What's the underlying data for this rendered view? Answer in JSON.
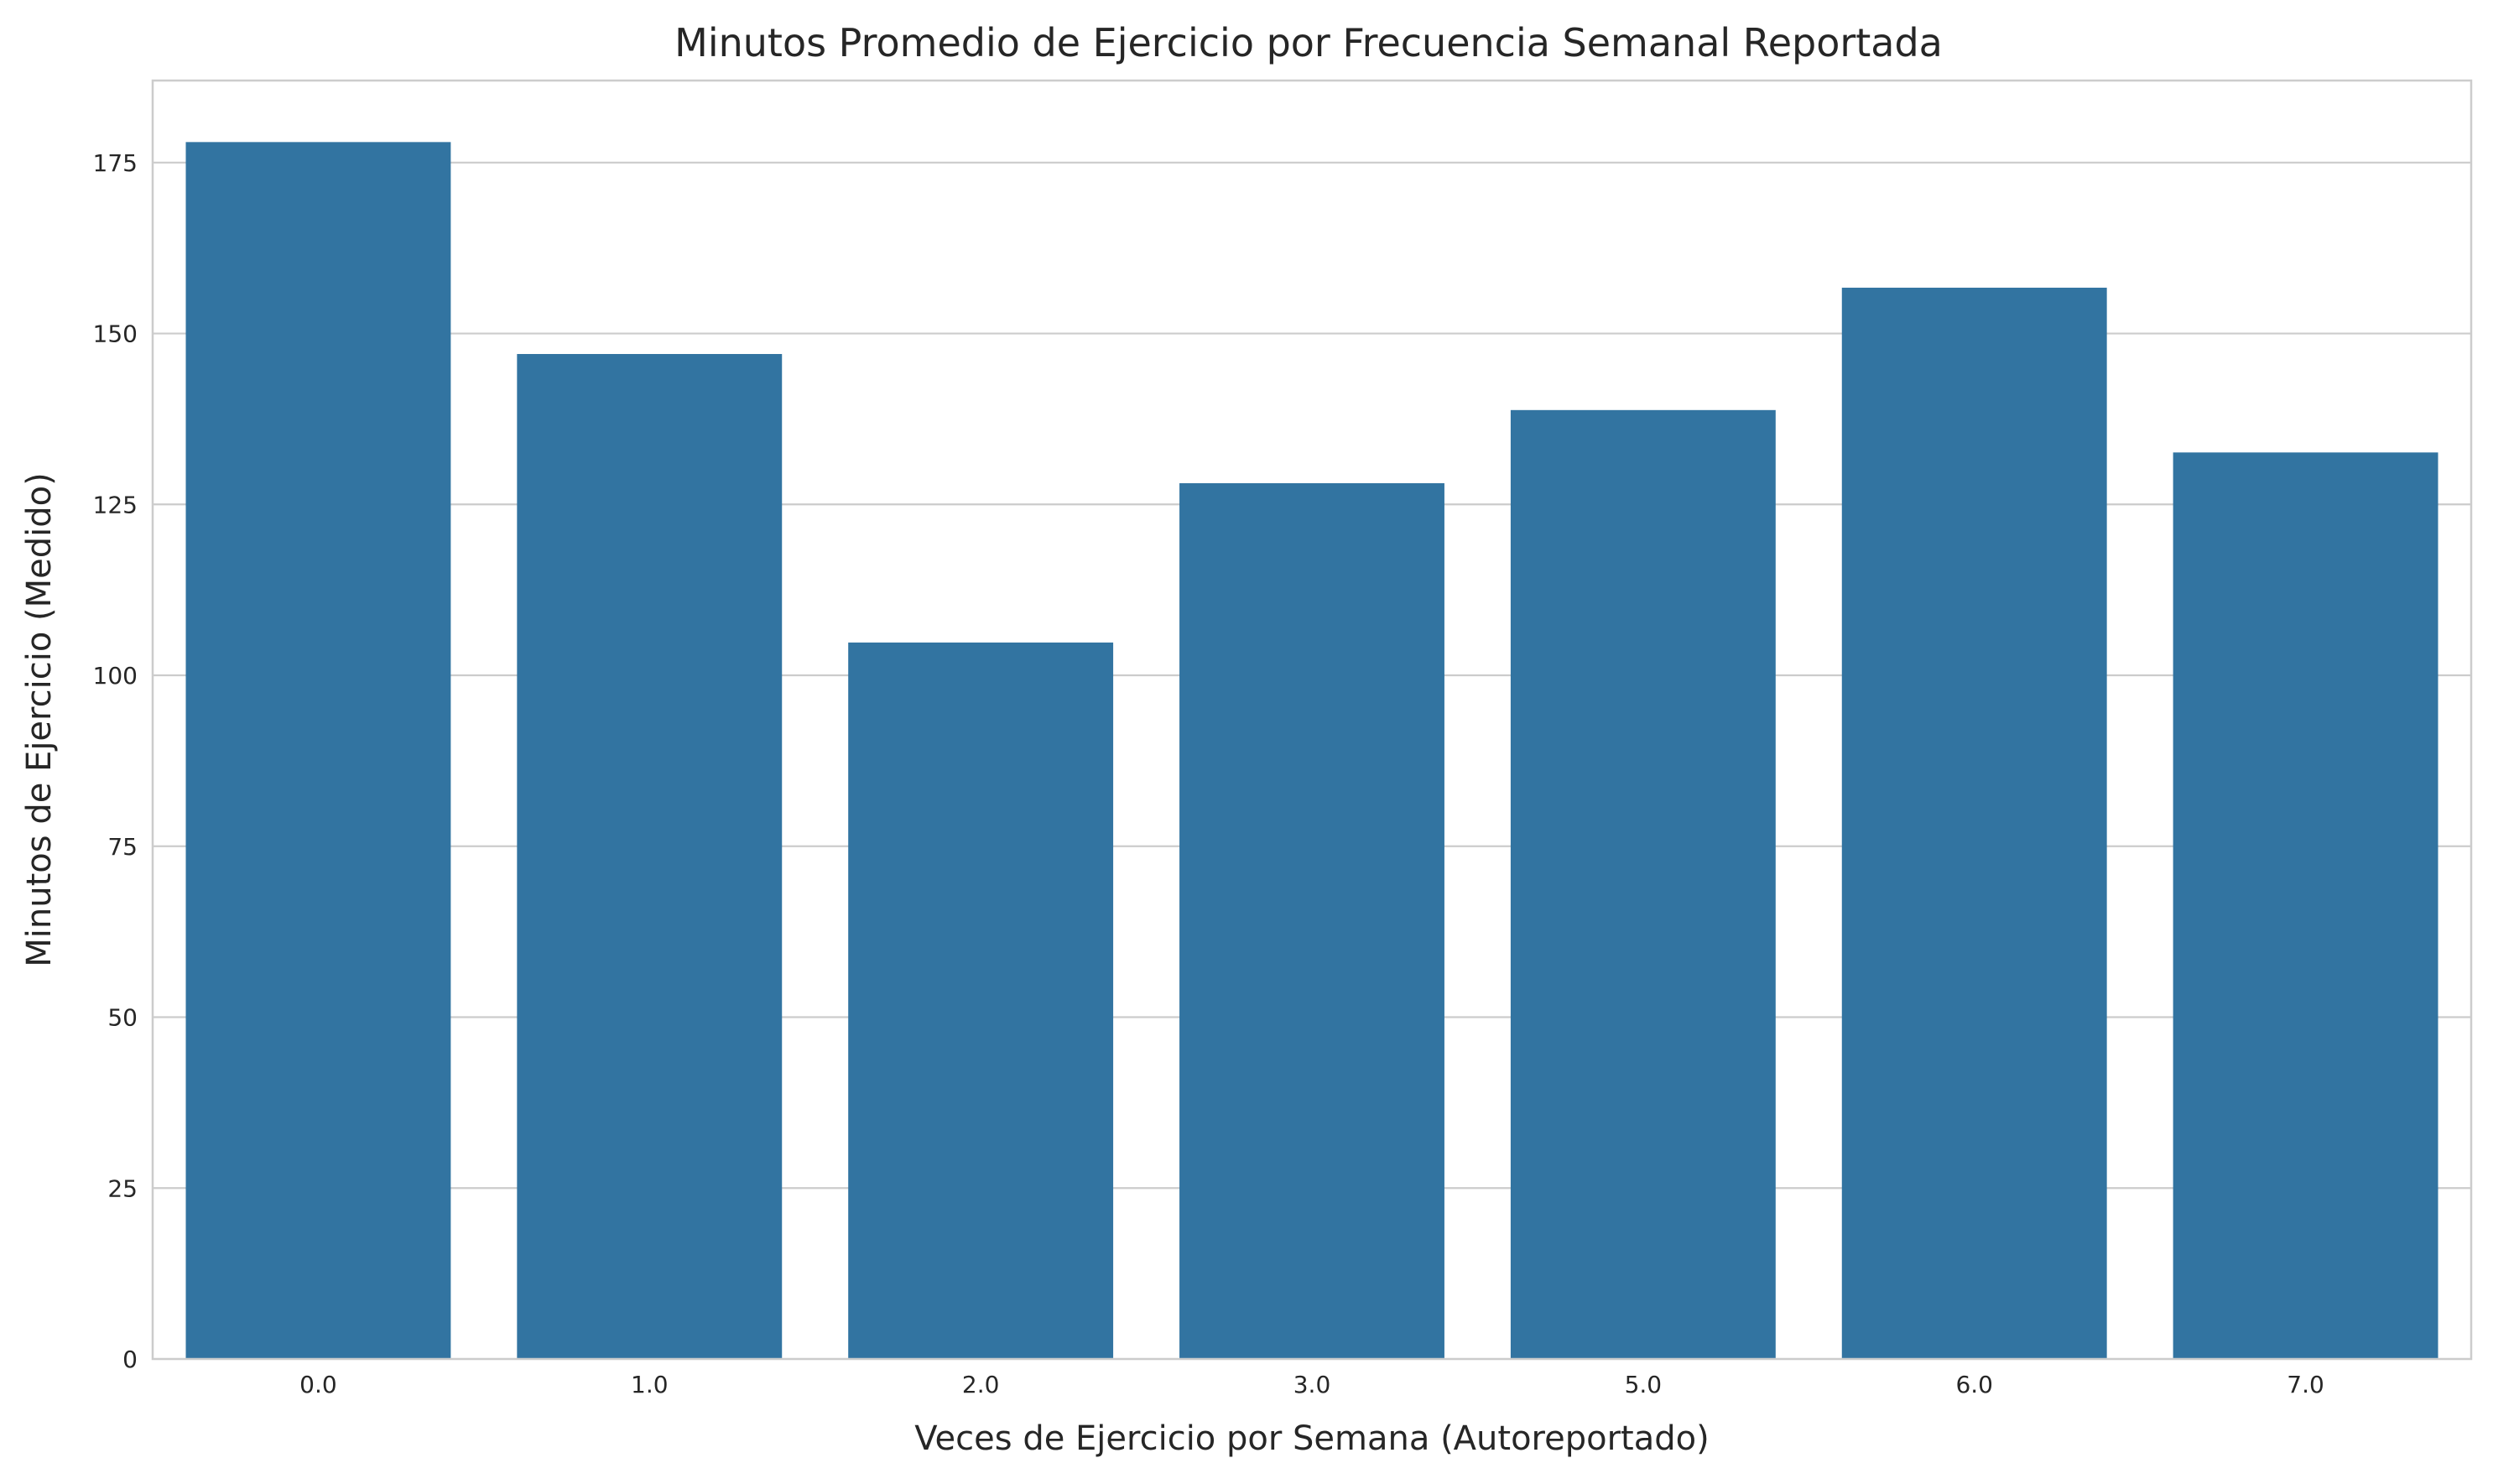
{
  "chart_data": {
    "type": "bar",
    "title": "Minutos Promedio de Ejercicio por Frecuencia Semanal Reportada",
    "xlabel": "Veces de Ejercicio por Semana (Autoreportado)",
    "ylabel": "Minutos de Ejercicio (Medido)",
    "categories": [
      "0.0",
      "1.0",
      "2.0",
      "3.0",
      "5.0",
      "6.0",
      "7.0"
    ],
    "values": [
      178,
      147,
      104.8,
      128.1,
      138.8,
      156.7,
      132.6
    ],
    "ylim": [
      0,
      187
    ],
    "yticks": [
      0,
      25,
      50,
      75,
      100,
      125,
      150,
      175
    ],
    "grid": true,
    "bar_color": "#3274a1",
    "grid_color": "#cccccc",
    "spine_color": "#cccccc",
    "text_color": "#262626"
  }
}
